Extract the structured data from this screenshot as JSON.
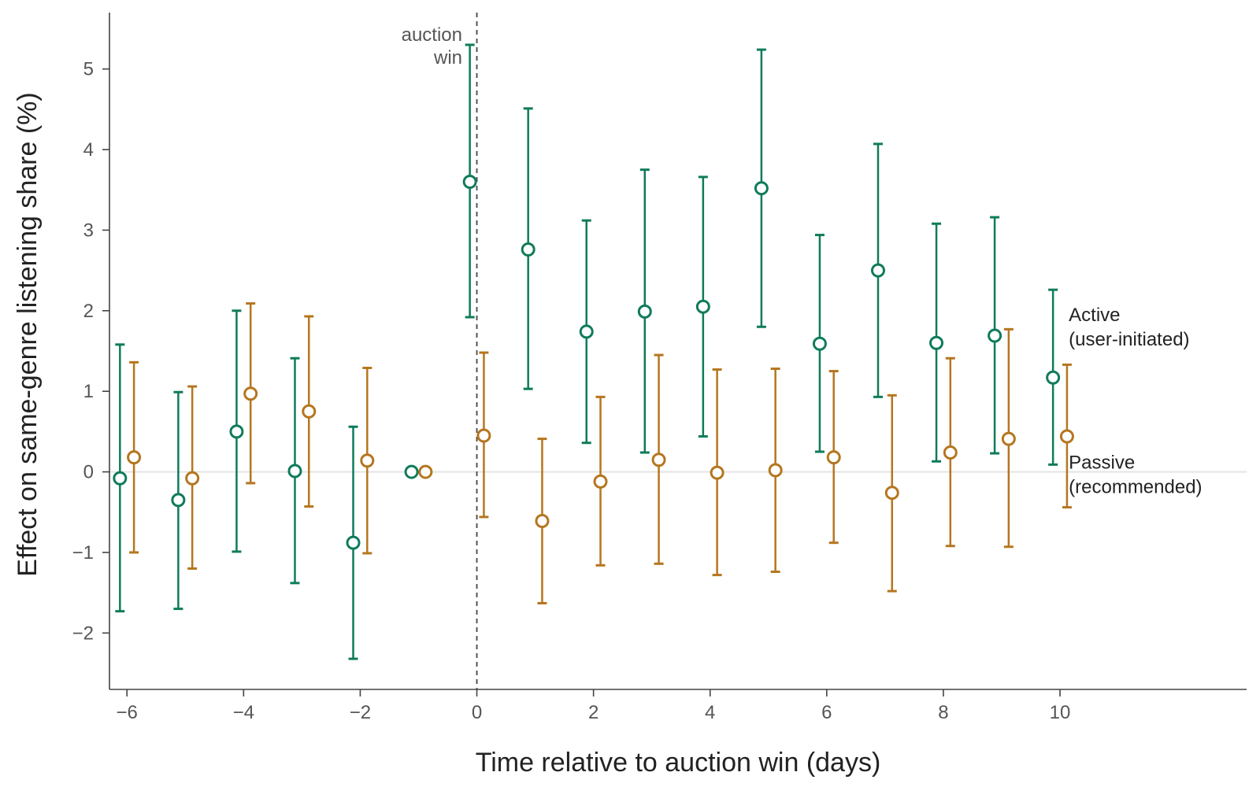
{
  "chart_data": {
    "type": "scatter",
    "title": "",
    "xlabel": "Time relative to auction win (days)",
    "ylabel": "Effect on same-genre listening share (%)",
    "xlim": [
      -6.3,
      13.2
    ],
    "ylim": [
      -2.7,
      5.7
    ],
    "xticks": [
      -6,
      -4,
      -2,
      0,
      2,
      4,
      6,
      8,
      10
    ],
    "xtick_labels": [
      "−6",
      "−4",
      "−2",
      "0",
      "2",
      "4",
      "6",
      "8",
      "10"
    ],
    "yticks": [
      -2,
      -1,
      0,
      1,
      2,
      3,
      4,
      5
    ],
    "ytick_labels": [
      "−2",
      "−1",
      "0",
      "1",
      "2",
      "3",
      "4",
      "5"
    ],
    "grid": false,
    "reference_lines": [
      {
        "axis": "y",
        "value": 0,
        "style": "solid",
        "color": "#e3e3e3"
      },
      {
        "axis": "x",
        "value": 0,
        "style": "dashed",
        "color": "#555555"
      }
    ],
    "annotations": [
      {
        "lines": [
          "auction",
          "win"
        ],
        "x": -0.25,
        "y": 5.35
      }
    ],
    "series": [
      {
        "name": "Active",
        "label_lines": [
          "Active",
          "(user-initiated)"
        ],
        "label_position": [
          10.15,
          1.87
        ],
        "color": "#0f7b5b",
        "offset": -0.12,
        "x": [
          -6,
          -5,
          -4,
          -3,
          -2,
          -1,
          0,
          1,
          2,
          3,
          4,
          5,
          6,
          7,
          8,
          9,
          10
        ],
        "y": [
          -0.08,
          -0.35,
          0.5,
          0.01,
          -0.88,
          0.0,
          3.6,
          2.76,
          1.74,
          1.99,
          2.05,
          3.52,
          1.59,
          2.5,
          1.6,
          1.69,
          1.17
        ],
        "ci_low": [
          -1.73,
          -1.7,
          -0.99,
          -1.38,
          -2.32,
          null,
          1.92,
          1.03,
          0.36,
          0.24,
          0.44,
          1.8,
          0.25,
          0.93,
          0.13,
          0.23,
          0.09
        ],
        "ci_high": [
          1.58,
          0.99,
          2.0,
          1.41,
          0.56,
          null,
          5.3,
          4.51,
          3.12,
          3.75,
          3.66,
          5.24,
          2.94,
          4.07,
          3.08,
          3.16,
          2.26
        ]
      },
      {
        "name": "Passive",
        "label_lines": [
          "Passive",
          "(recommended)"
        ],
        "label_position": [
          10.15,
          0.04
        ],
        "color": "#b5761f",
        "offset": 0.12,
        "x": [
          -6,
          -5,
          -4,
          -3,
          -2,
          -1,
          0,
          1,
          2,
          3,
          4,
          5,
          6,
          7,
          8,
          9,
          10
        ],
        "y": [
          0.18,
          -0.08,
          0.97,
          0.75,
          0.14,
          0.0,
          0.45,
          -0.61,
          -0.12,
          0.15,
          -0.01,
          0.02,
          0.18,
          -0.26,
          0.24,
          0.41,
          0.44
        ],
        "ci_low": [
          -1.0,
          -1.2,
          -0.14,
          -0.43,
          -1.01,
          null,
          -0.56,
          -1.63,
          -1.16,
          -1.14,
          -1.28,
          -1.24,
          -0.88,
          -1.48,
          -0.92,
          -0.93,
          -0.44
        ],
        "ci_high": [
          1.36,
          1.06,
          2.09,
          1.93,
          1.29,
          null,
          1.48,
          0.41,
          0.93,
          1.45,
          1.27,
          1.28,
          1.25,
          0.95,
          1.41,
          1.77,
          1.33
        ]
      }
    ]
  }
}
